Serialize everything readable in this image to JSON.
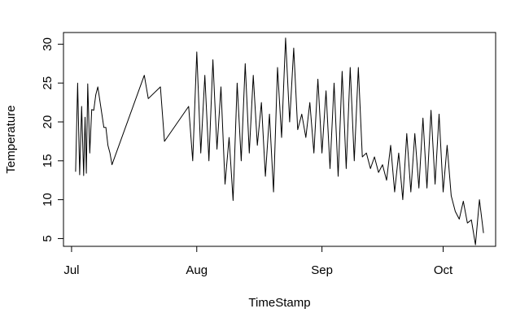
{
  "chart_data": {
    "type": "line",
    "title": "",
    "xlabel": "TimeStamp",
    "ylabel": "Temperature",
    "x_ticks": [
      "Jul",
      "Aug",
      "Sep",
      "Oct"
    ],
    "y_ticks": [
      5,
      10,
      15,
      20,
      25,
      30
    ],
    "xlim": [
      "2017-06-29",
      "2017-10-14"
    ],
    "ylim": [
      4,
      31.5
    ],
    "grid": false,
    "legend": "none",
    "line_color": "#000000",
    "series": [
      {
        "x": [
          "2017-07-02",
          "2017-07-02",
          "2017-07-03",
          "2017-07-03",
          "2017-07-04",
          "2017-07-04",
          "2017-07-04",
          "2017-07-05",
          "2017-07-05",
          "2017-07-06",
          "2017-07-06",
          "2017-07-07",
          "2017-07-07",
          "2017-07-09",
          "2017-07-09",
          "2017-07-10",
          "2017-07-10",
          "2017-07-11",
          "2017-07-19",
          "2017-07-20",
          "2017-07-23",
          "2017-07-24",
          "2017-07-30",
          "2017-07-31",
          "2017-08-01",
          "2017-08-02",
          "2017-08-03",
          "2017-08-04",
          "2017-08-05",
          "2017-08-06",
          "2017-08-07",
          "2017-08-08",
          "2017-08-09",
          "2017-08-10",
          "2017-08-11",
          "2017-08-12",
          "2017-08-13",
          "2017-08-14",
          "2017-08-15",
          "2017-08-16",
          "2017-08-17",
          "2017-08-18",
          "2017-08-19",
          "2017-08-20",
          "2017-08-21",
          "2017-08-22",
          "2017-08-23",
          "2017-08-24",
          "2017-08-25",
          "2017-08-26",
          "2017-08-27",
          "2017-08-28",
          "2017-08-29",
          "2017-08-30",
          "2017-08-31",
          "2017-09-01",
          "2017-09-02",
          "2017-09-03",
          "2017-09-04",
          "2017-09-05",
          "2017-09-06",
          "2017-09-07",
          "2017-09-08",
          "2017-09-09",
          "2017-09-10",
          "2017-09-11",
          "2017-09-12",
          "2017-09-13",
          "2017-09-14",
          "2017-09-15",
          "2017-09-16",
          "2017-09-17",
          "2017-09-18",
          "2017-09-19",
          "2017-09-20",
          "2017-09-21",
          "2017-09-22",
          "2017-09-23",
          "2017-09-24",
          "2017-09-25",
          "2017-09-26",
          "2017-09-27",
          "2017-09-28",
          "2017-09-29",
          "2017-09-30",
          "2017-10-01",
          "2017-10-02",
          "2017-10-03",
          "2017-10-04",
          "2017-10-05",
          "2017-10-06",
          "2017-10-07",
          "2017-10-08",
          "2017-10-09",
          "2017-10-10",
          "2017-10-11"
        ],
        "values": [
          13.6,
          25,
          13.2,
          22,
          13.1,
          20.6,
          13.4,
          24.9,
          16,
          21.6,
          21.5,
          23.5,
          24.5,
          19.3,
          19.3,
          17,
          16,
          14.5,
          26,
          23,
          24.5,
          17.5,
          22,
          15,
          29,
          16,
          26,
          15,
          28,
          16.5,
          24.5,
          12,
          18,
          9.9,
          25,
          15,
          27.5,
          16,
          26,
          17,
          22.5,
          13,
          21,
          11,
          27,
          18,
          30.8,
          20,
          29.5,
          19,
          21,
          18,
          22.5,
          16,
          25.5,
          16,
          24,
          14,
          25,
          13,
          26.5,
          14,
          27,
          15,
          27,
          15.5,
          16,
          14,
          15.5,
          13.5,
          14.5,
          12.5,
          17,
          11,
          16,
          10,
          18.5,
          11,
          18.5,
          11.5,
          20.5,
          11.5,
          21.5,
          12,
          21,
          11,
          17,
          10.5,
          8.5,
          7.5,
          9.8,
          7,
          7.4,
          4.2,
          10,
          5.7
        ]
      }
    ]
  }
}
